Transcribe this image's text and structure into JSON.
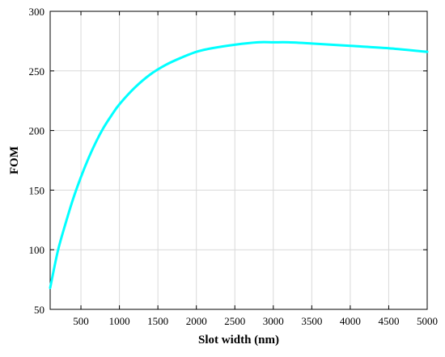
{
  "chart_data": {
    "type": "line",
    "title": "",
    "xlabel": "Slot width (nm)",
    "ylabel": "FOM",
    "xlim": [
      100,
      5000
    ],
    "ylim": [
      50,
      300
    ],
    "xticks": [
      500,
      1000,
      1500,
      2000,
      2500,
      3000,
      3500,
      4000,
      4500,
      5000
    ],
    "yticks": [
      50,
      100,
      150,
      200,
      250,
      300
    ],
    "grid": true,
    "legend": "none",
    "series": [
      {
        "color": "#00ffff",
        "x": [
          100,
          200,
          300,
          400,
          500,
          600,
          700,
          800,
          900,
          1000,
          1200,
          1400,
          1600,
          1800,
          2000,
          2200,
          2500,
          2800,
          3000,
          3200,
          3500,
          4000,
          4500,
          5000
        ],
        "y": [
          68,
          99,
          122,
          143,
          161,
          177,
          191,
          203,
          213,
          222,
          236,
          247,
          255,
          261,
          266,
          269,
          272,
          274,
          274,
          274,
          273,
          271,
          269,
          266
        ]
      }
    ]
  }
}
